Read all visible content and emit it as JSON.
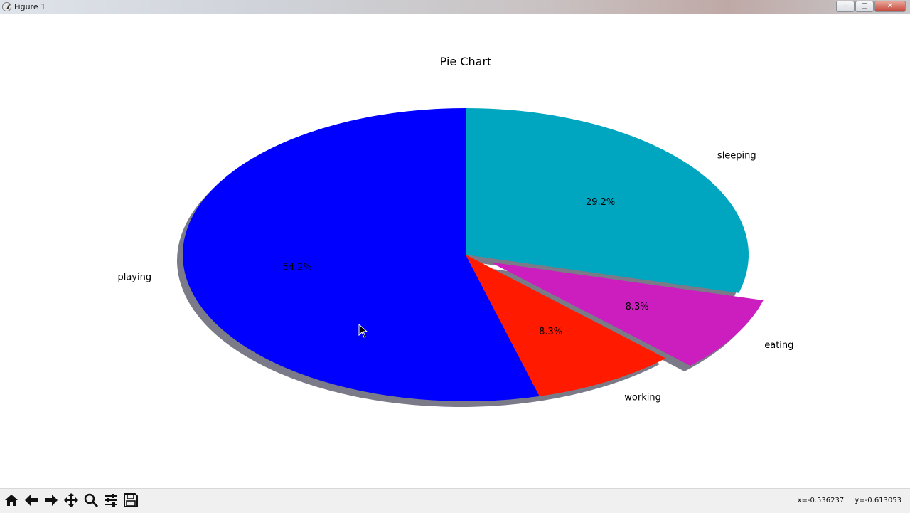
{
  "window": {
    "title": "Figure 1",
    "minimize": "–",
    "maximize": "□",
    "close": "✕"
  },
  "toolbar": {
    "tools": [
      "home-icon",
      "back-icon",
      "forward-icon",
      "pan-icon",
      "zoom-icon",
      "configure-subplots-icon",
      "save-icon"
    ],
    "coords": {
      "x": "x=-0.536237",
      "y": "y=-0.613053"
    }
  },
  "colors": {
    "playing": "#0000ff",
    "working": "#ff1a00",
    "eating": "#cc1dbf",
    "sleeping": "#00a6c0",
    "shadow": "#7a7a88"
  },
  "chart_data": {
    "type": "pie",
    "title": "Pie Chart",
    "slices": [
      {
        "label": "playing",
        "value": 54.2,
        "pct_label": "54.2%",
        "color": "#0000ff",
        "explode": 0
      },
      {
        "label": "working",
        "value": 8.3,
        "pct_label": "8.3%",
        "color": "#ff1a00",
        "explode": 0
      },
      {
        "label": "eating",
        "value": 8.3,
        "pct_label": "8.3%",
        "color": "#cc1dbf",
        "explode": 0.1
      },
      {
        "label": "sleeping",
        "value": 29.2,
        "pct_label": "29.2%",
        "color": "#00a6c0",
        "explode": 0
      }
    ],
    "start_angle": 90,
    "shadow": true
  }
}
